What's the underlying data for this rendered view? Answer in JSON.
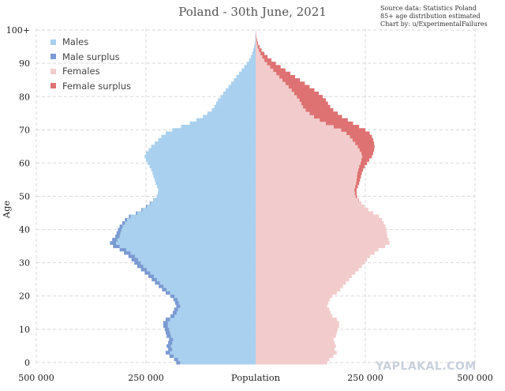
{
  "chart_data": {
    "type": "bar",
    "orientation": "horizontal-population-pyramid",
    "title": "Poland - 30th June, 2021",
    "source_lines": [
      "Source data: Statistics Poland",
      "85+ age distribution estimated",
      "Chart by: u/ExperimentalFailures"
    ],
    "xlabel": "Population",
    "ylabel": "Age",
    "xlim": [
      -500000,
      500000
    ],
    "ylim": [
      0,
      100
    ],
    "x_ticks": [
      {
        "value": -500000,
        "label": "500 000"
      },
      {
        "value": -250000,
        "label": "250 000"
      },
      {
        "value": 250000,
        "label": "250 000"
      },
      {
        "value": 500000,
        "label": "500 000"
      }
    ],
    "y_ticks": [
      {
        "value": 0,
        "label": "0"
      },
      {
        "value": 10,
        "label": "10"
      },
      {
        "value": 20,
        "label": "20"
      },
      {
        "value": 30,
        "label": "30"
      },
      {
        "value": 40,
        "label": "40"
      },
      {
        "value": 50,
        "label": "50"
      },
      {
        "value": 60,
        "label": "60"
      },
      {
        "value": 70,
        "label": "70"
      },
      {
        "value": 80,
        "label": "80"
      },
      {
        "value": 90,
        "label": "90"
      },
      {
        "value": 100,
        "label": "100+"
      }
    ],
    "legend": {
      "placement": "top-left",
      "items": [
        {
          "label": "Males",
          "color": "#a9d0ee"
        },
        {
          "label": "Male surplus",
          "color": "#7a9ad2"
        },
        {
          "label": "Females",
          "color": "#f2cccc"
        },
        {
          "label": "Female surplus",
          "color": "#de7272"
        }
      ]
    },
    "colors": {
      "males": "#a9d0ee",
      "male_surplus": "#7a9ad2",
      "females": "#f2cccc",
      "female_surplus": "#de7272",
      "grid": "#d9d9d9"
    },
    "grid": true,
    "ages": [
      0,
      1,
      2,
      3,
      4,
      5,
      6,
      7,
      8,
      9,
      10,
      11,
      12,
      13,
      14,
      15,
      16,
      17,
      18,
      19,
      20,
      21,
      22,
      23,
      24,
      25,
      26,
      27,
      28,
      29,
      30,
      31,
      32,
      33,
      34,
      35,
      36,
      37,
      38,
      39,
      40,
      41,
      42,
      43,
      44,
      45,
      46,
      47,
      48,
      49,
      50,
      51,
      52,
      53,
      54,
      55,
      56,
      57,
      58,
      59,
      60,
      61,
      62,
      63,
      64,
      65,
      66,
      67,
      68,
      69,
      70,
      71,
      72,
      73,
      74,
      75,
      76,
      77,
      78,
      79,
      80,
      81,
      82,
      83,
      84,
      85,
      86,
      87,
      88,
      89,
      90,
      91,
      92,
      93,
      94,
      95,
      96,
      97,
      98,
      99,
      100
    ],
    "series": [
      {
        "name": "Males",
        "values": [
          172000,
          177000,
          187000,
          195000,
          190000,
          193000,
          190000,
          188000,
          193000,
          195000,
          197000,
          200000,
          200000,
          195000,
          185000,
          180000,
          177000,
          172000,
          175000,
          178000,
          185000,
          195000,
          203000,
          210000,
          218000,
          225000,
          232000,
          240000,
          248000,
          256000,
          262000,
          268000,
          275000,
          285000,
          295000,
          310000,
          318000,
          315000,
          310000,
          308000,
          306000,
          303000,
          298000,
          293000,
          285000,
          270000,
          258000,
          248000,
          240000,
          232000,
          225000,
          223000,
          222000,
          225000,
          228000,
          230000,
          233000,
          235000,
          238000,
          242000,
          246000,
          250000,
          253000,
          250000,
          244000,
          238000,
          230000,
          222000,
          215000,
          205000,
          190000,
          170000,
          150000,
          135000,
          120000,
          110000,
          100000,
          94000,
          90000,
          86000,
          80000,
          74000,
          68000,
          62000,
          56000,
          50000,
          44000,
          38000,
          32000,
          26000,
          20000,
          15000,
          11000,
          8000,
          5500,
          3500,
          2000,
          1200,
          700,
          400,
          200
        ]
      },
      {
        "name": "Male surplus",
        "values": [
          9000,
          9000,
          9500,
          10000,
          9500,
          10000,
          9500,
          9500,
          10000,
          10000,
          10000,
          10500,
          10500,
          10000,
          9500,
          9000,
          9000,
          9000,
          9000,
          9500,
          9500,
          10000,
          10500,
          11000,
          11500,
          12000,
          12500,
          13000,
          13500,
          14000,
          14500,
          15000,
          15000,
          15000,
          15000,
          15000,
          14000,
          12000,
          10000,
          9000,
          8000,
          7000,
          6000,
          5000,
          4000,
          3000,
          2500,
          2000,
          1500,
          1000,
          600,
          0,
          0,
          0,
          0,
          0,
          0,
          0,
          0,
          0,
          0,
          0,
          0,
          0,
          0,
          0,
          0,
          0,
          0,
          0,
          0,
          0,
          0,
          0,
          0,
          0,
          0,
          0,
          0,
          0,
          0,
          0,
          0,
          0,
          0,
          0,
          0,
          0,
          0,
          0,
          0,
          0,
          0,
          0,
          0,
          0,
          0,
          0,
          0,
          0,
          0
        ]
      },
      {
        "name": "Females",
        "values": [
          163000,
          168000,
          177000,
          185000,
          180000,
          183000,
          180000,
          178000,
          183000,
          185000,
          187000,
          190000,
          190000,
          185000,
          175000,
          171000,
          168000,
          163000,
          166000,
          169000,
          175000,
          185000,
          193000,
          199000,
          206000,
          213000,
          219000,
          227000,
          235000,
          242000,
          248000,
          254000,
          261000,
          271000,
          280000,
          295000,
          305000,
          303000,
          300000,
          299000,
          298000,
          296000,
          292000,
          288000,
          281000,
          268000,
          257000,
          248000,
          241000,
          234000,
          228000,
          226000,
          225000,
          227000,
          229000,
          230000,
          231000,
          232000,
          234000,
          236000,
          239000,
          241000,
          243000,
          241000,
          237000,
          233000,
          227000,
          221000,
          215000,
          207000,
          195000,
          178000,
          160000,
          146000,
          133000,
          123000,
          114000,
          108000,
          104000,
          100000,
          94000,
          88000,
          82000,
          75000,
          68000,
          61000,
          54000,
          47000,
          40000,
          33000,
          26000,
          20000,
          15000,
          11000,
          7500,
          5000,
          3000,
          1800,
          1000,
          500,
          250
        ]
      },
      {
        "name": "Female surplus",
        "values": [
          0,
          0,
          0,
          0,
          0,
          0,
          0,
          0,
          0,
          0,
          0,
          0,
          0,
          0,
          0,
          0,
          0,
          0,
          0,
          0,
          0,
          0,
          0,
          0,
          0,
          0,
          0,
          0,
          0,
          0,
          0,
          0,
          0,
          0,
          0,
          0,
          0,
          0,
          0,
          0,
          0,
          0,
          0,
          0,
          0,
          0,
          0,
          0,
          0,
          1000,
          3000,
          4000,
          5000,
          6000,
          7000,
          8000,
          9000,
          10000,
          11000,
          13000,
          15000,
          18000,
          22000,
          27000,
          33000,
          38000,
          43000,
          47000,
          50000,
          53000,
          55000,
          58000,
          62000,
          64000,
          64000,
          64000,
          63000,
          62000,
          61000,
          60000,
          59000,
          56000,
          52000,
          48000,
          44000,
          40000,
          36000,
          32000,
          28000,
          24000,
          20000,
          16000,
          12000,
          9000,
          6000,
          4000,
          2500,
          1500,
          800,
          400,
          200
        ]
      }
    ]
  },
  "watermark": "YAPLAKAL.COM"
}
